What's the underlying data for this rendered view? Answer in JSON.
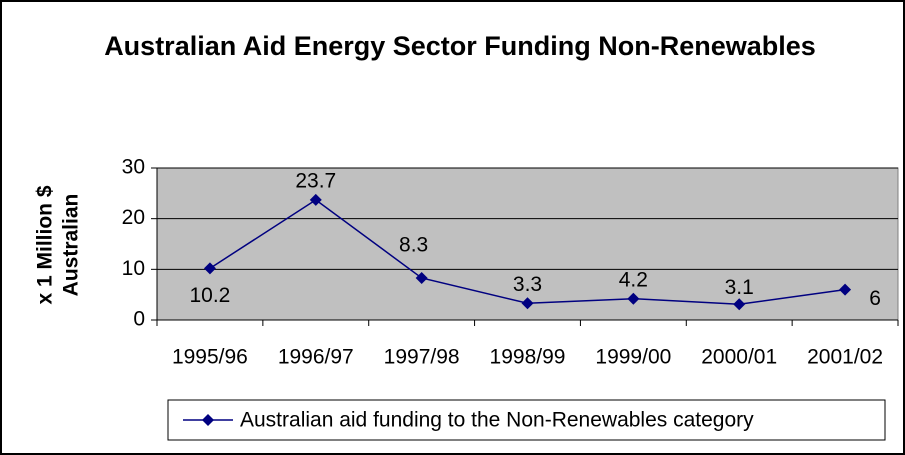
{
  "chart_data": {
    "type": "line",
    "title": "Australian Aid Energy Sector Funding Non-Renewables",
    "ylabel": [
      "x 1 Million $",
      "Australian"
    ],
    "categories": [
      "1995/96",
      "1996/97",
      "1997/98",
      "1998/99",
      "1999/00",
      "2000/01",
      "2001/02"
    ],
    "series": [
      {
        "name": "Australian aid funding to the Non-Renewables category",
        "color": "#000080",
        "values": [
          10.2,
          23.7,
          8.3,
          3.3,
          4.2,
          3.1,
          6
        ]
      }
    ],
    "ylim": [
      0,
      30
    ],
    "yticks": [
      0,
      10,
      20,
      30
    ],
    "grid": true,
    "legend": "bottom"
  }
}
